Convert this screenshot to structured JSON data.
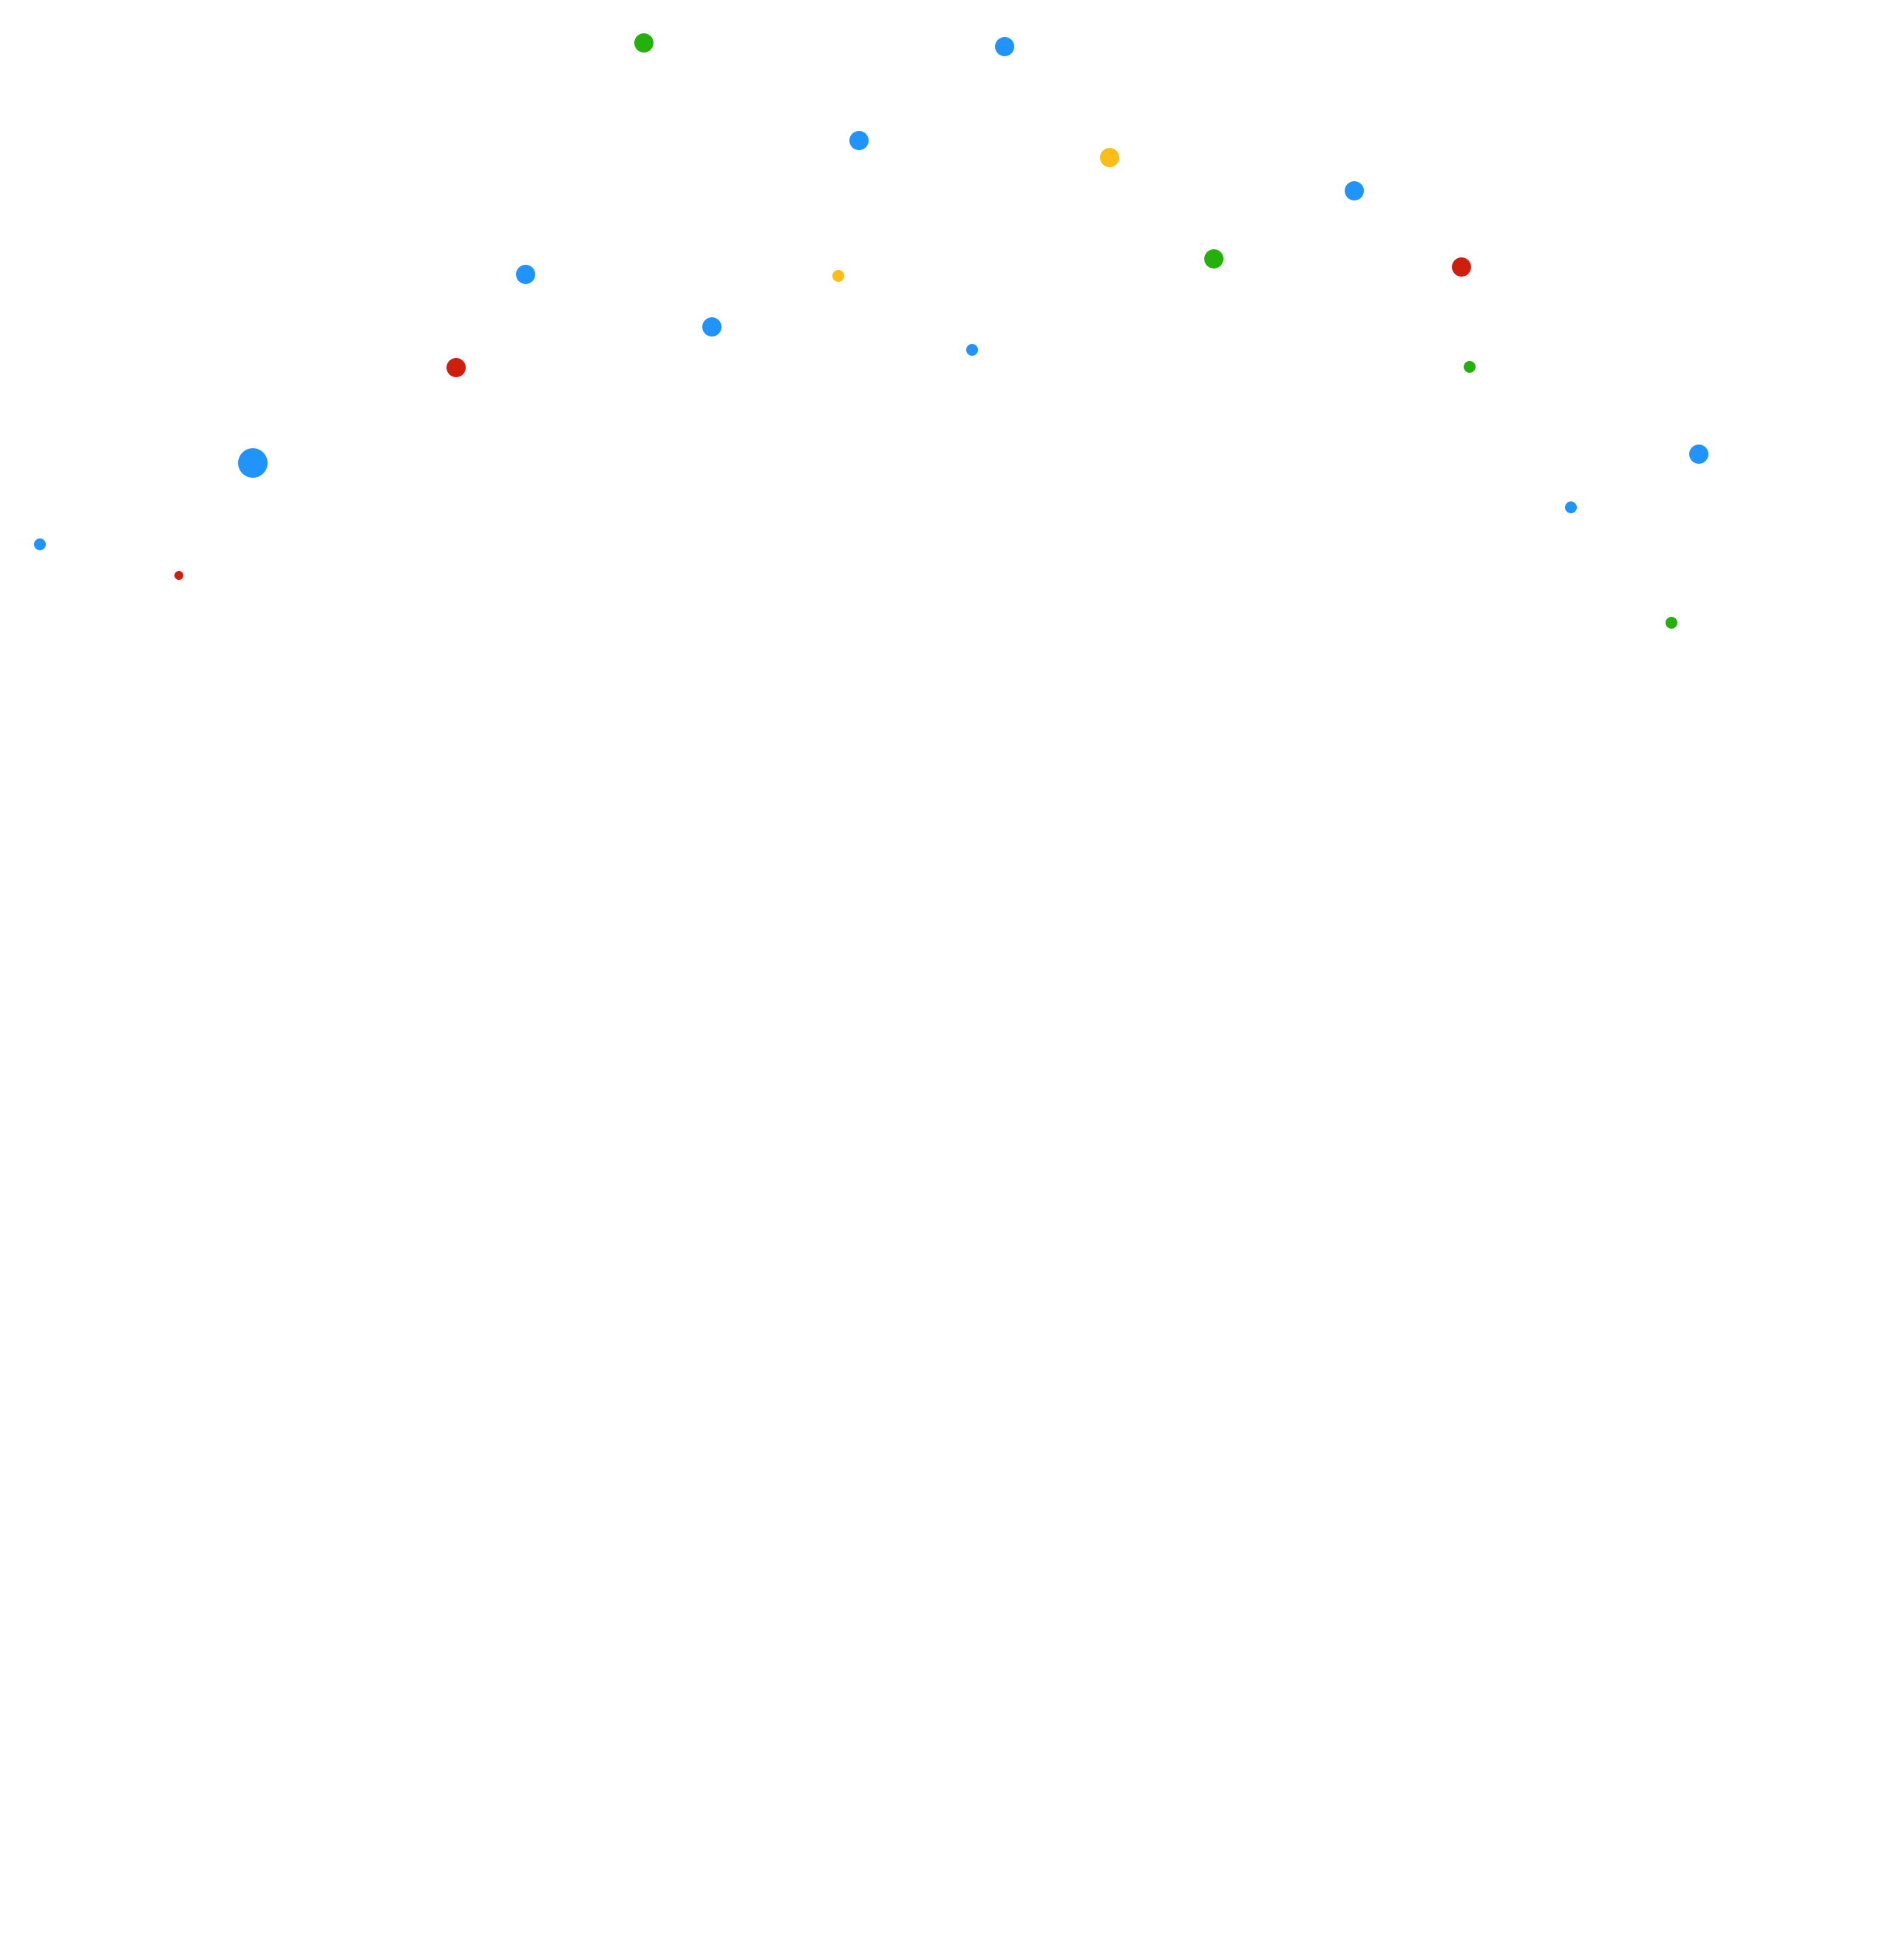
{
  "colors": {
    "background": "#ffffff",
    "blue": "#2094fa",
    "green": "#24b10c",
    "yellow": "#fdbd19",
    "red": "#cf1e0d"
  },
  "dots": [
    {
      "color": "green"
    },
    {
      "color": "blue"
    },
    {
      "color": "blue"
    },
    {
      "color": "yellow"
    },
    {
      "color": "blue"
    },
    {
      "color": "green"
    },
    {
      "color": "red"
    },
    {
      "color": "blue"
    },
    {
      "color": "yellow"
    },
    {
      "color": "blue"
    },
    {
      "color": "blue"
    },
    {
      "color": "red"
    },
    {
      "color": "green"
    },
    {
      "color": "blue"
    },
    {
      "color": "blue"
    },
    {
      "color": "blue"
    },
    {
      "color": "red"
    },
    {
      "color": "green"
    }
  ]
}
